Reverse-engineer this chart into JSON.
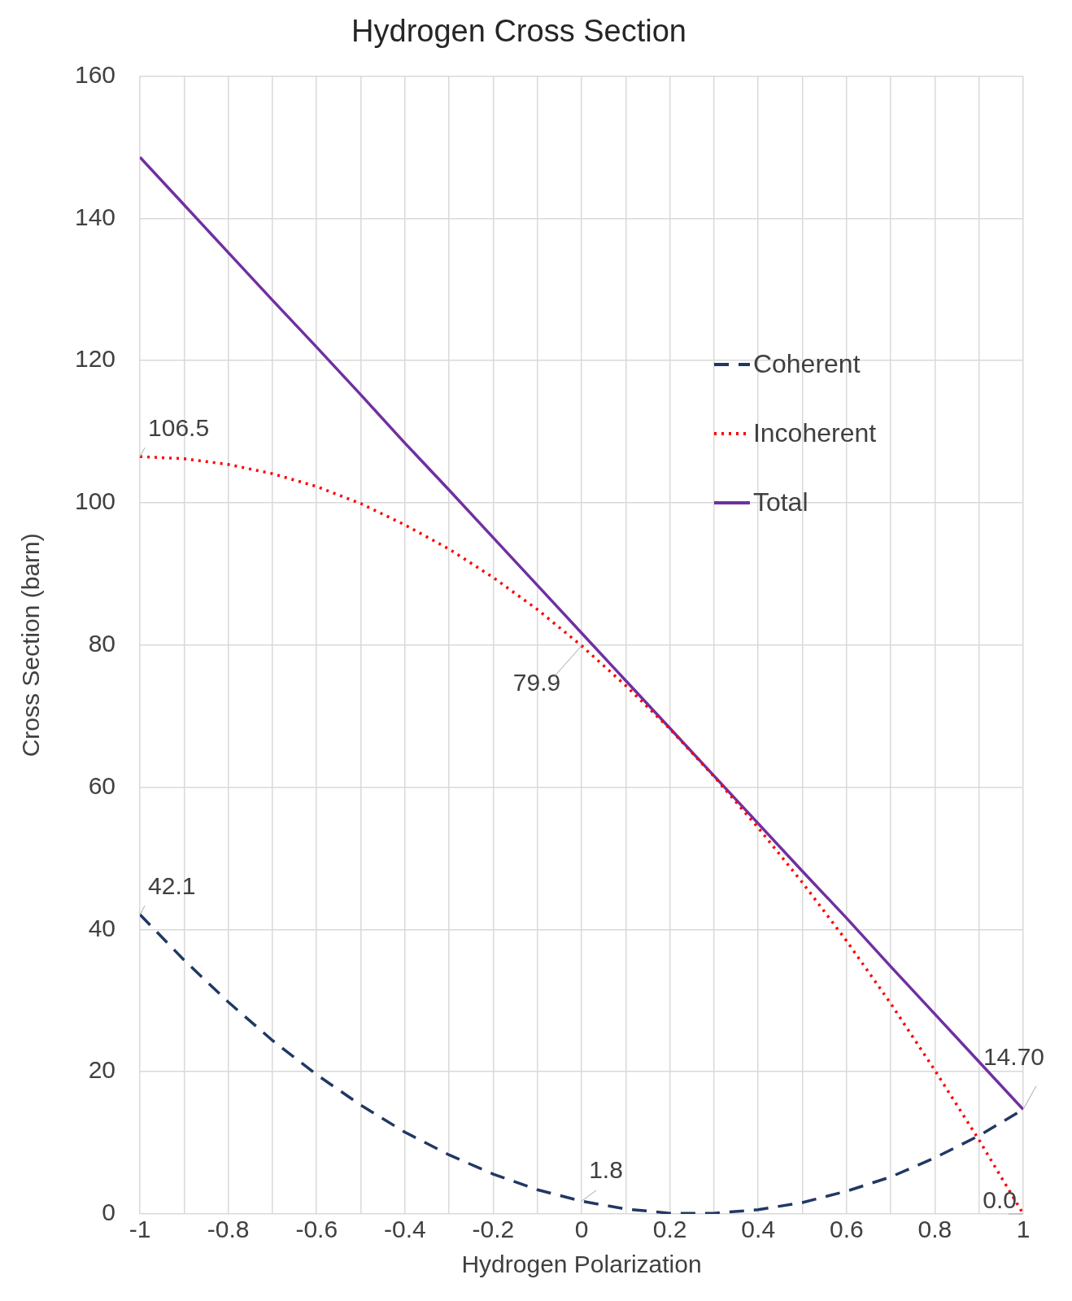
{
  "chart_data": {
    "type": "line",
    "title": "Hydrogen Cross Section",
    "xlabel": "Hydrogen Polarization",
    "ylabel": "Cross Section (barn)",
    "x": [
      -1,
      -0.9,
      -0.8,
      -0.7,
      -0.6,
      -0.5,
      -0.4,
      -0.3,
      -0.2,
      -0.1,
      0,
      0.1,
      0.2,
      0.3,
      0.4,
      0.5,
      0.6,
      0.7,
      0.8,
      0.9,
      1
    ],
    "series": [
      {
        "name": "Coherent",
        "color": "#203864",
        "line_style": "dashed",
        "values": [
          42.1,
          35.7,
          29.8,
          24.4,
          19.6,
          15.3,
          11.5,
          8.3,
          5.6,
          3.4,
          1.8,
          0.7,
          0.1,
          0.1,
          0.6,
          1.6,
          3.2,
          5.2,
          7.9,
          11.0,
          14.7
        ]
      },
      {
        "name": "Incoherent",
        "color": "#ff0000",
        "line_style": "dotted",
        "values": [
          106.5,
          106.2,
          105.4,
          104.1,
          102.3,
          99.9,
          96.9,
          93.5,
          89.5,
          85.0,
          79.9,
          74.3,
          68.2,
          61.5,
          54.3,
          46.6,
          38.4,
          29.6,
          20.2,
          10.4,
          0.0
        ]
      },
      {
        "name": "Total",
        "color": "#7030a0",
        "line_style": "solid",
        "values": [
          148.6,
          141.9,
          135.2,
          128.5,
          121.9,
          115.2,
          108.4,
          101.8,
          95.1,
          88.4,
          81.7,
          75.0,
          68.3,
          61.6,
          54.9,
          48.2,
          41.6,
          34.8,
          28.1,
          21.4,
          14.7
        ]
      }
    ],
    "xlim": [
      -1,
      1
    ],
    "xticks": [
      -1,
      {
        "value": -0.9,
        "label": null
      },
      -0.8,
      {
        "value": -0.7,
        "label": null
      },
      -0.6,
      {
        "value": -0.5,
        "label": null
      },
      -0.4,
      {
        "value": -0.3,
        "label": null
      },
      -0.2,
      {
        "value": -0.1,
        "label": null
      },
      0,
      {
        "value": 0.1,
        "label": null
      },
      0.2,
      {
        "value": 0.3,
        "label": null
      },
      0.4,
      {
        "value": 0.5,
        "label": null
      },
      0.6,
      {
        "value": 0.7,
        "label": null
      },
      0.8,
      {
        "value": 0.9,
        "label": null
      },
      1
    ],
    "ylim": [
      0,
      160
    ],
    "yticks": [
      0,
      20,
      40,
      60,
      80,
      100,
      120,
      140,
      160
    ],
    "grid": true,
    "legend": "right",
    "marker": "none",
    "annotations": [
      {
        "text": "106.5",
        "x": -1,
        "y": 106.5
      },
      {
        "text": "42.1",
        "x": -1,
        "y": 42.1
      },
      {
        "text": "79.9",
        "x": 0,
        "y": 79.9
      },
      {
        "text": "1.8",
        "x": 0,
        "y": 1.8
      },
      {
        "text": "14.70",
        "x": 1,
        "y": 14.7
      },
      {
        "text": "0.0",
        "x": 1,
        "y": 0.0
      }
    ]
  }
}
